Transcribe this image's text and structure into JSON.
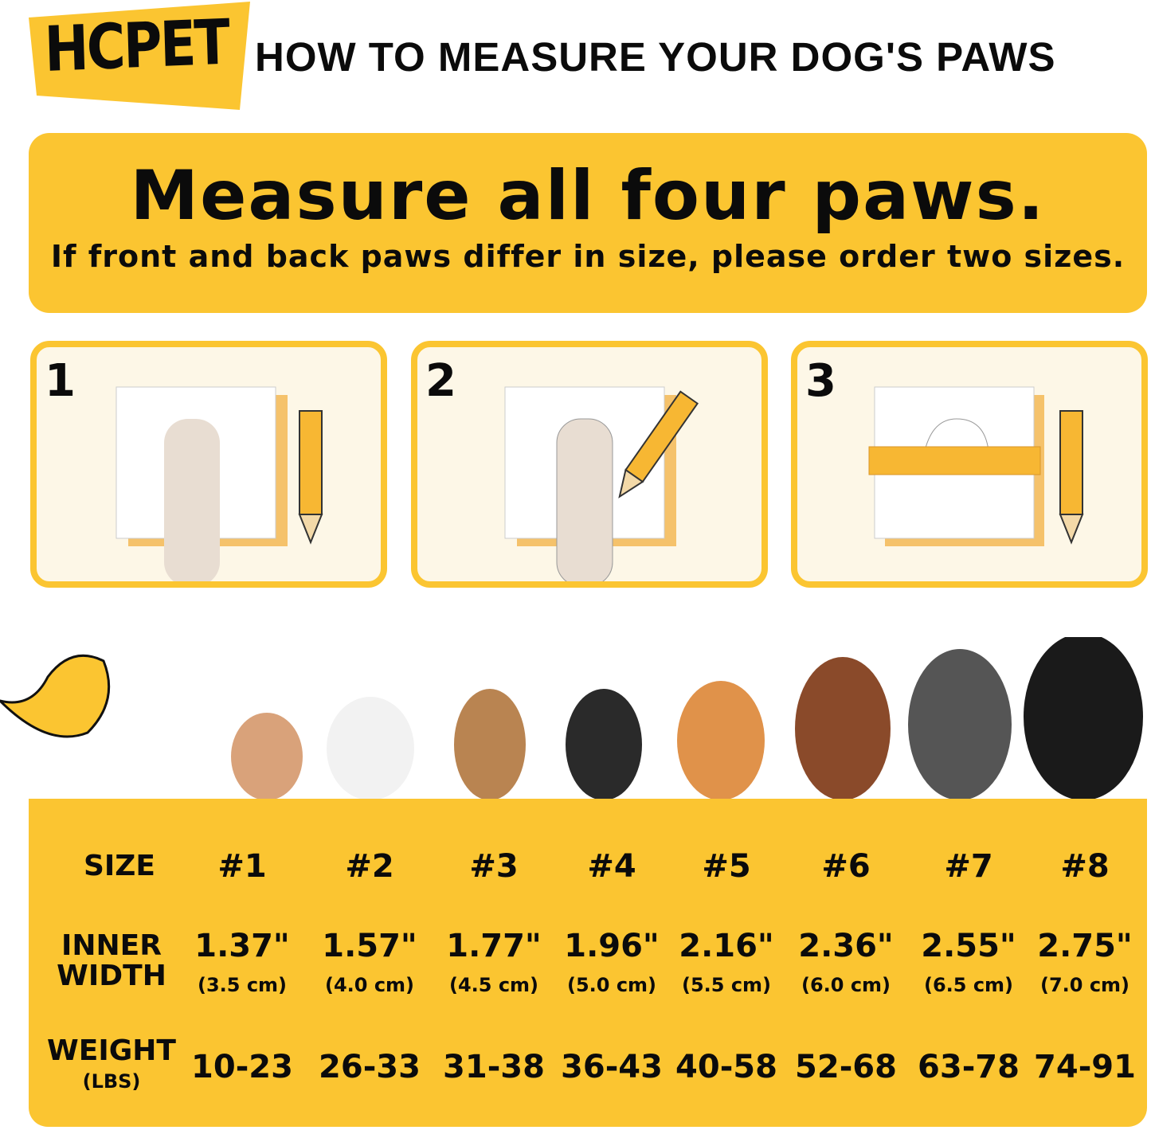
{
  "brand": {
    "logo": "HCPET",
    "title": "HOW TO MEASURE YOUR DOG'S PAWS"
  },
  "banner": {
    "heading": "Measure all four paws.",
    "subheading": "If front and back paws differ in size, please order two sizes."
  },
  "steps": [
    {
      "number": "1",
      "icon": "paw-on-paper"
    },
    {
      "number": "2",
      "icon": "trace-paw-with-pencil"
    },
    {
      "number": "3",
      "icon": "measure-with-ruler"
    }
  ],
  "colors": {
    "accent": "#FBC531",
    "panel": "#FDF7E7"
  },
  "table": {
    "size_label": "SIZE",
    "width_label": [
      "INNER",
      "WIDTH"
    ],
    "weight_label": [
      "WEIGHT",
      "(LBS)"
    ],
    "columns": [
      {
        "size": "#1",
        "inch": "1.37\"",
        "cm": "(3.5 cm)",
        "weight": "10-23"
      },
      {
        "size": "#2",
        "inch": "1.57\"",
        "cm": "(4.0 cm)",
        "weight": "26-33"
      },
      {
        "size": "#3",
        "inch": "1.77\"",
        "cm": "(4.5 cm)",
        "weight": "31-38"
      },
      {
        "size": "#4",
        "inch": "1.96\"",
        "cm": "(5.0 cm)",
        "weight": "36-43"
      },
      {
        "size": "#5",
        "inch": "2.16\"",
        "cm": "(5.5 cm)",
        "weight": "40-58"
      },
      {
        "size": "#6",
        "inch": "2.36\"",
        "cm": "(6.0 cm)",
        "weight": "52-68"
      },
      {
        "size": "#7",
        "inch": "2.55\"",
        "cm": "(6.5 cm)",
        "weight": "63-78"
      },
      {
        "size": "#8",
        "inch": "2.75\"",
        "cm": "(7.0 cm)",
        "weight": "74-91"
      }
    ]
  }
}
